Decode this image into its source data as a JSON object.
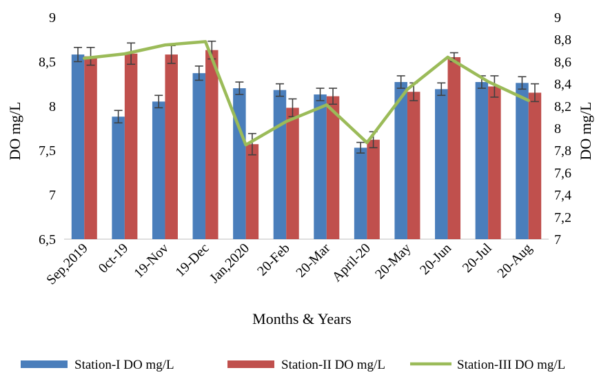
{
  "chart_data": {
    "type": "bar",
    "xlabel": "Months & Years",
    "ylabel_left": "DO mg/L",
    "ylabel_right": "DO mg/L",
    "categories": [
      "Sep,2019",
      "0ct-19",
      "19-Nov",
      "19-Dec",
      "Jan,2020",
      "20-Feb",
      "20-Mar",
      "April-20",
      "20-May",
      "20-Jun",
      "20-Jul",
      "20-Aug"
    ],
    "y_left": {
      "min": 6.5,
      "max": 9,
      "step": 0.5,
      "tick_labels": [
        "6,5",
        "7",
        "7,5",
        "8",
        "8,5",
        "9"
      ]
    },
    "y_right": {
      "min": 7,
      "max": 9,
      "step": 0.2,
      "tick_labels": [
        "7",
        "7,2",
        "7,4",
        "7,6",
        "7,8",
        "8",
        "8,2",
        "8,4",
        "8,6",
        "8,8",
        "9"
      ]
    },
    "series": [
      {
        "name": "Station-I DO mg/L",
        "type": "bar",
        "axis": "left",
        "color": "#4a7ebb",
        "values": [
          8.58,
          7.88,
          8.05,
          8.37,
          8.2,
          8.18,
          8.13,
          7.53,
          8.27,
          8.19,
          8.27,
          8.26
        ],
        "errors": [
          0.08,
          0.07,
          0.07,
          0.08,
          0.07,
          0.07,
          0.07,
          0.06,
          0.07,
          0.07,
          0.07,
          0.07
        ]
      },
      {
        "name": "Station-II DO mg/L",
        "type": "bar",
        "axis": "left",
        "color": "#c0504d",
        "values": [
          8.56,
          8.59,
          8.58,
          8.63,
          7.57,
          7.98,
          8.11,
          7.62,
          8.16,
          8.55,
          8.22,
          8.15
        ],
        "errors": [
          0.1,
          0.12,
          0.1,
          0.1,
          0.12,
          0.1,
          0.09,
          0.09,
          0.1,
          0.05,
          0.12,
          0.1
        ]
      },
      {
        "name": "Station-III DO mg/L",
        "type": "line",
        "axis": "right",
        "color": "#9bbb59",
        "values": [
          8.63,
          8.67,
          8.75,
          8.78,
          7.85,
          8.06,
          8.21,
          7.87,
          8.35,
          8.64,
          8.42,
          8.25
        ]
      }
    ],
    "legend_position": "bottom",
    "grid": false
  }
}
